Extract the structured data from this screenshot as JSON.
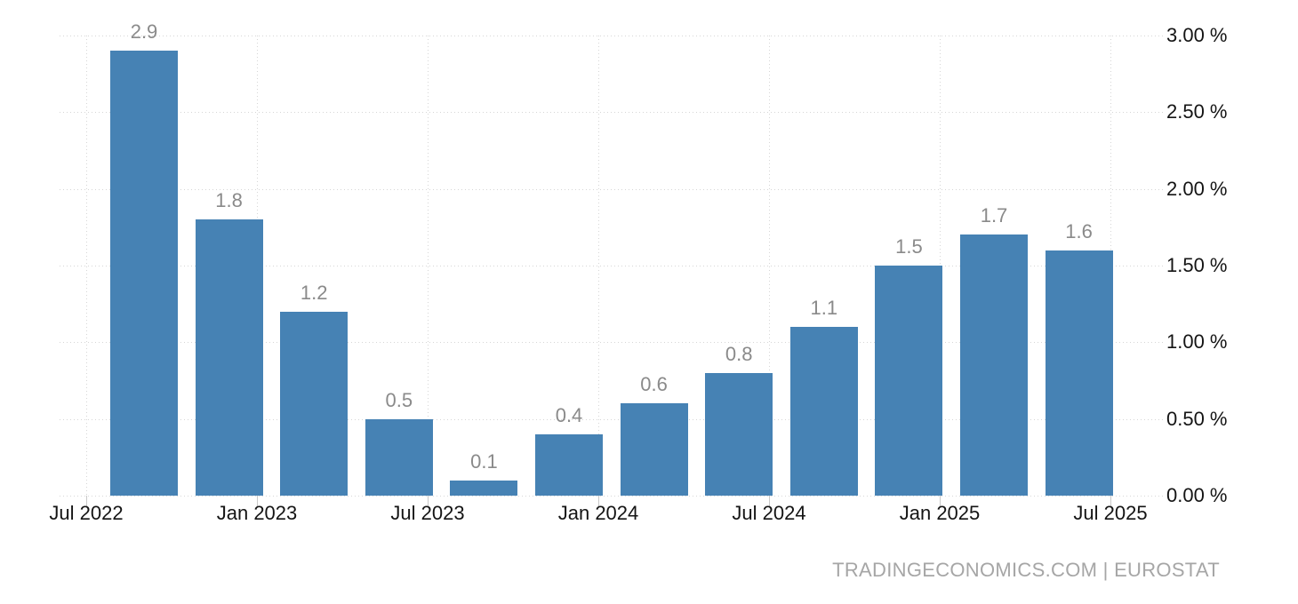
{
  "chart_data": {
    "type": "bar",
    "title": "",
    "values": [
      2.9,
      1.8,
      1.2,
      0.5,
      0.1,
      0.4,
      0.6,
      0.8,
      1.1,
      1.5,
      1.7,
      1.6
    ],
    "value_labels": [
      "2.9",
      "1.8",
      "1.2",
      "0.5",
      "0.1",
      "0.4",
      "0.6",
      "0.8",
      "1.1",
      "1.5",
      "1.7",
      "1.6"
    ],
    "x_tick_labels": [
      "Jul 2022",
      "Jan 2023",
      "Jul 2023",
      "Jan 2024",
      "Jul 2024",
      "Jan 2025",
      "Jul 2025"
    ],
    "y_tick_labels": [
      "0.00 %",
      "0.50 %",
      "1.00 %",
      "1.50 %",
      "2.00 %",
      "2.50 %",
      "3.00 %"
    ],
    "y_tick_values": [
      0,
      0.5,
      1,
      1.5,
      2,
      2.5,
      3
    ],
    "ylim": [
      0,
      3
    ],
    "xlabel": "",
    "ylabel": "",
    "legend": "none",
    "grid": "dotted horizontal and vertical",
    "colors": {
      "bar": "#4682b4",
      "grid": "#d6d6d6",
      "axis_tick": "#c9c9c9",
      "value_label": "#8a8a8a",
      "axis_text": "#141414",
      "background": "#ffffff"
    }
  },
  "attribution": {
    "text": "TRADINGECONOMICS.COM | EUROSTAT",
    "color": "#a6a6a6"
  }
}
